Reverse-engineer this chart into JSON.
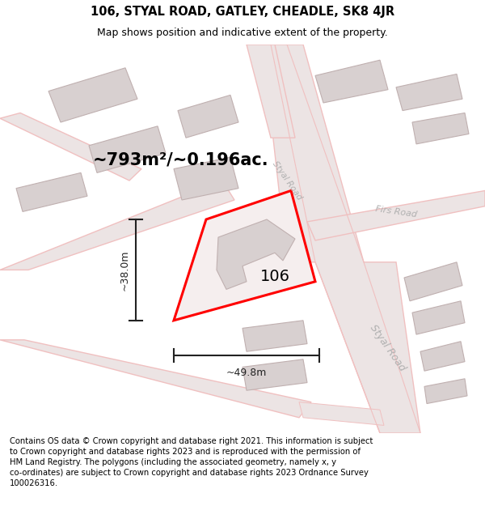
{
  "title": "106, STYAL ROAD, GATLEY, CHEADLE, SK8 4JR",
  "subtitle": "Map shows position and indicative extent of the property.",
  "footer": "Contains OS data © Crown copyright and database right 2021. This information is subject\nto Crown copyright and database rights 2023 and is reproduced with the permission of\nHM Land Registry. The polygons (including the associated geometry, namely x, y\nco-ordinates) are subject to Crown copyright and database rights 2023 Ordnance Survey\n100026316.",
  "area_label": "~793m²/~0.196ac.",
  "width_label": "~49.8m",
  "height_label": "~38.0m",
  "number_label": "106",
  "map_bg": "#f9f4f4",
  "building_fill": "#d8d0d0",
  "building_edge": "#c0b0b0",
  "road_line": "#f0c0c0",
  "road_fill": "#ede8e8",
  "prop_fill": "#f5eeee",
  "prop_edge": "#ff0000",
  "dim_color": "#222222",
  "road_label_color": "#b0b0b0",
  "title_fontsize": 10.5,
  "subtitle_fontsize": 9,
  "footer_fontsize": 7.2,
  "area_fontsize": 15,
  "num_fontsize": 14
}
